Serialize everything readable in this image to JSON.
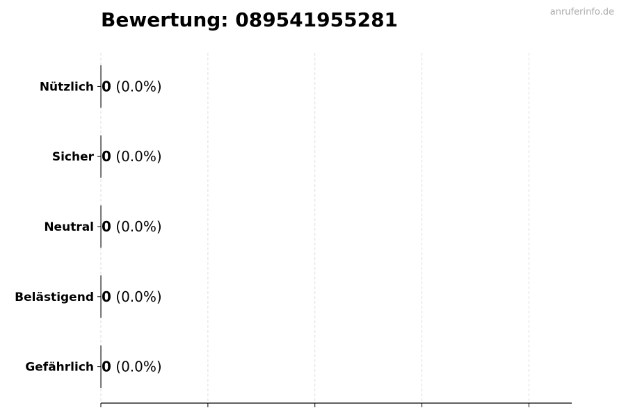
{
  "chart_data": {
    "type": "bar",
    "orientation": "horizontal",
    "title": "Bewertung: 089541955281",
    "watermark": "anruferinfo.de",
    "categories": [
      "Nützlich",
      "Sicher",
      "Neutral",
      "Belästigend",
      "Gefährlich"
    ],
    "values": [
      0,
      0,
      0,
      0,
      0
    ],
    "value_labels": [
      "0",
      "0",
      "0",
      "0",
      "0"
    ],
    "percent_labels": [
      "(0.0%)",
      "(0.0%)",
      "(0.0%)",
      "(0.0%)",
      "(0.0%)"
    ],
    "xlim": [
      0,
      4.4
    ],
    "xticks": [
      0,
      1,
      2,
      3,
      4
    ],
    "xtick_labels_shown": false,
    "grid": "x-dashed",
    "colors": {
      "grid": "#dddddd",
      "axis": "#000000",
      "watermark": "#aaaaaa"
    }
  }
}
